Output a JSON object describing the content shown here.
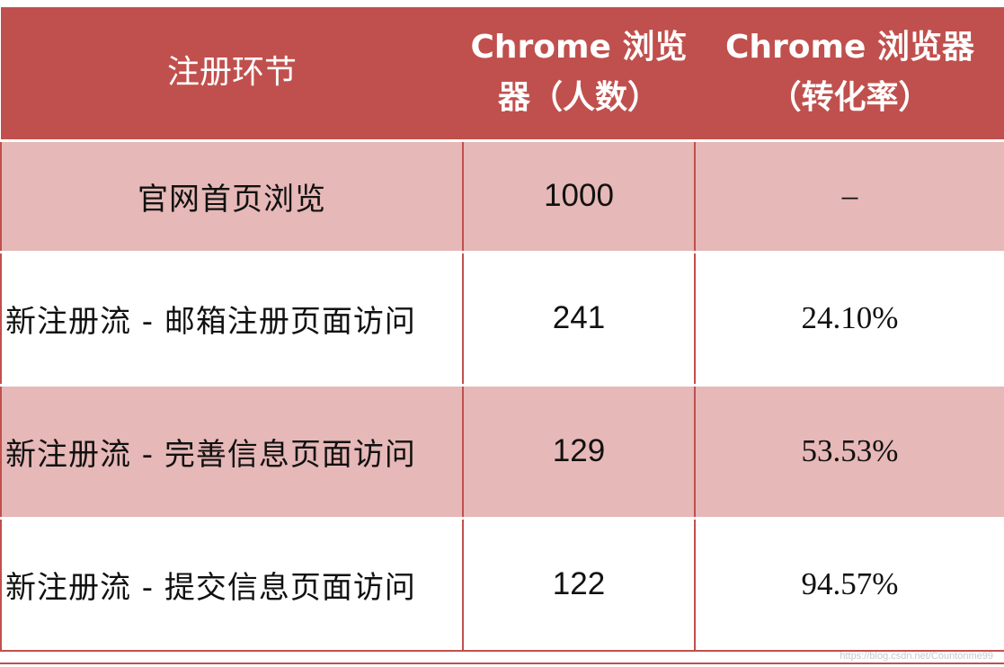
{
  "chart_data": {
    "type": "table",
    "columns": [
      "注册环节",
      "Chrome 浏览器（人数）",
      "Chrome 浏览器（转化率）"
    ],
    "rows": [
      {
        "step": "官网首页浏览",
        "count": "1000",
        "rate": "–"
      },
      {
        "step": "新注册流 - 邮箱注册页面访问",
        "count": "241",
        "rate": "24.10%"
      },
      {
        "step": "新注册流 - 完善信息页面访问",
        "count": "129",
        "rate": "53.53%"
      },
      {
        "step": "新注册流 - 提交信息页面访问",
        "count": "122",
        "rate": "94.57%"
      }
    ]
  },
  "header": {
    "col1": "注册环节",
    "col2_line1": "Chrome 浏览",
    "col2_line2": "器（人数）",
    "col3_line1": "Chrome 浏览器",
    "col3_line2": "（转化率）"
  },
  "watermark": "https://blog.csdn.net/Countonme99",
  "colors": {
    "header_bg": "#c0504d",
    "shade_row": "#e6b8b7",
    "plain_row": "#ffffff",
    "border": "#c0504d"
  }
}
